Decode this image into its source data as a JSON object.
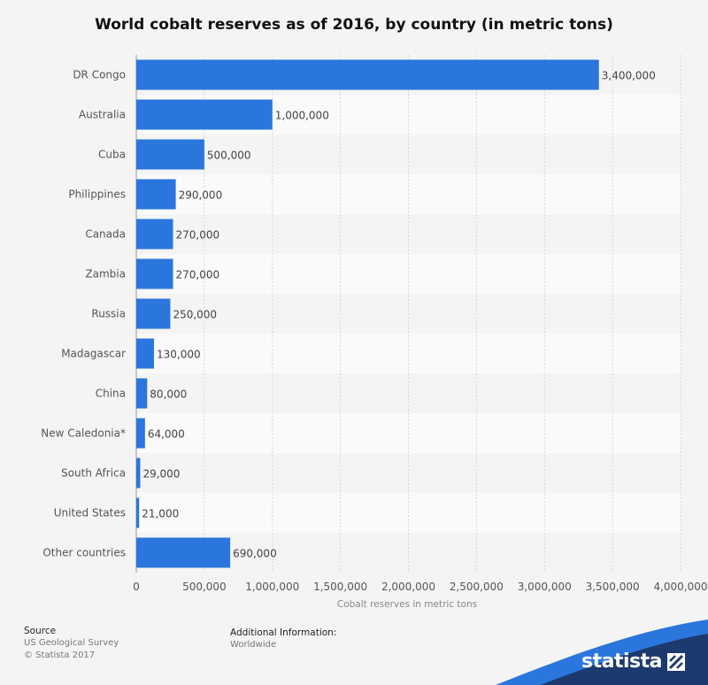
{
  "chart_data": {
    "type": "bar",
    "orientation": "horizontal",
    "title": "World cobalt reserves as of 2016, by country (in metric tons)",
    "xlabel": "Cobalt reserves in metric tons",
    "ylabel": "",
    "categories": [
      "DR Congo",
      "Australia",
      "Cuba",
      "Philippines",
      "Canada",
      "Zambia",
      "Russia",
      "Madagascar",
      "China",
      "New Caledonia*",
      "South Africa",
      "United States",
      "Other countries"
    ],
    "values": [
      3400000,
      1000000,
      500000,
      290000,
      270000,
      270000,
      250000,
      130000,
      80000,
      64000,
      29000,
      21000,
      690000
    ],
    "value_labels": [
      "3,400,000",
      "1,000,000",
      "500,000",
      "290,000",
      "270,000",
      "270,000",
      "250,000",
      "130,000",
      "80,000",
      "64,000",
      "29,000",
      "21,000",
      "690,000"
    ],
    "xlim": [
      0,
      4000000
    ],
    "x_ticks": [
      0,
      500000,
      1000000,
      1500000,
      2000000,
      2500000,
      3000000,
      3500000,
      4000000
    ],
    "x_tick_labels": [
      "0",
      "500,000",
      "1,000,000",
      "1,500,000",
      "2,000,000",
      "2,500,000",
      "3,000,000",
      "3,500,000",
      "4,000,000"
    ],
    "grid": true,
    "legend": "none",
    "bar_color": "#2a76dd"
  },
  "footer": {
    "source_heading": "Source",
    "source_line1": "US Geological Survey",
    "source_line2": "© Statista 2017",
    "additional_heading": "Additional Information:",
    "additional_value": "Worldwide"
  },
  "brand": {
    "name": "statista",
    "icon": "statista-logo-icon",
    "color": "#1c3a6e"
  }
}
